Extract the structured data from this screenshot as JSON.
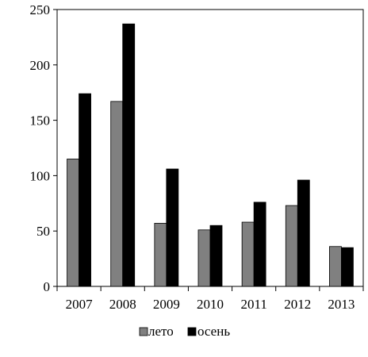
{
  "chart_data": {
    "type": "bar",
    "title": "",
    "xlabel": "",
    "ylabel": "",
    "categories": [
      "2007",
      "2008",
      "2009",
      "2010",
      "2011",
      "2012",
      "2013"
    ],
    "series": [
      {
        "name": "лето",
        "color": "#808080",
        "values": [
          115,
          167,
          57,
          51,
          58,
          73,
          36
        ]
      },
      {
        "name": "осень",
        "color": "#000000",
        "values": [
          174,
          237,
          106,
          55,
          76,
          96,
          35
        ]
      }
    ],
    "ylim": [
      0,
      250
    ],
    "yticks": [
      0,
      50,
      100,
      150,
      200,
      250
    ],
    "ytick_labels": [
      "0",
      "50",
      "100",
      "150",
      "200",
      "250"
    ],
    "grid": false,
    "legend_position": "bottom"
  }
}
